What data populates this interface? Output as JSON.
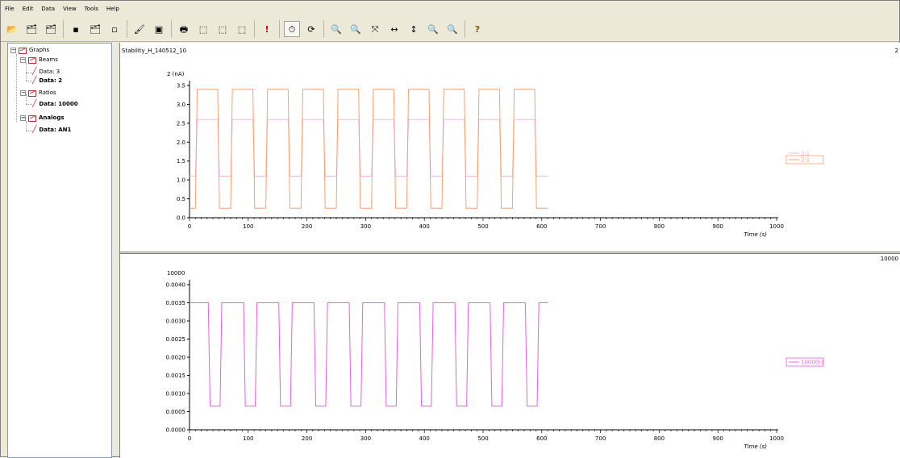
{
  "menu": [
    "File",
    "Edit",
    "Data",
    "View",
    "Tools",
    "Help"
  ],
  "toolbar": {
    "buttons": [
      {
        "name": "open-icon",
        "glyph": "📂"
      },
      {
        "name": "save-graph-icon",
        "glyph": "🗂"
      },
      {
        "name": "save-as-icon",
        "glyph": "🗂"
      },
      {
        "name": "separator"
      },
      {
        "name": "new-doc-icon",
        "glyph": "▪"
      },
      {
        "name": "copy-graph-icon",
        "glyph": "🗂"
      },
      {
        "name": "paste-icon",
        "glyph": "▫"
      },
      {
        "name": "separator"
      },
      {
        "name": "export-icon",
        "glyph": "🖌"
      },
      {
        "name": "image-icon",
        "glyph": "▣"
      },
      {
        "name": "separator"
      },
      {
        "name": "print-icon",
        "glyph": "🖶"
      },
      {
        "name": "add-graph-icon",
        "glyph": "⬚"
      },
      {
        "name": "edit-graph-icon",
        "glyph": "⬚"
      },
      {
        "name": "delete-graph-icon",
        "glyph": "⬚"
      },
      {
        "name": "separator"
      },
      {
        "name": "alert-icon",
        "glyph": "!"
      },
      {
        "name": "separator"
      },
      {
        "name": "timer-icon",
        "glyph": "⏱",
        "active": true
      },
      {
        "name": "refresh-icon",
        "glyph": "⟳"
      },
      {
        "name": "separator"
      },
      {
        "name": "zoom-in-icon",
        "glyph": "🔍"
      },
      {
        "name": "zoom-out-icon",
        "glyph": "🔍"
      },
      {
        "name": "fit-icon",
        "glyph": "⤧"
      },
      {
        "name": "zoom-horizontal-icon",
        "glyph": "↔"
      },
      {
        "name": "zoom-vertical-icon",
        "glyph": "↕"
      },
      {
        "name": "zoom-region-icon",
        "glyph": "🔍"
      },
      {
        "name": "zoom-reset-icon",
        "glyph": "🔍"
      },
      {
        "name": "separator"
      },
      {
        "name": "help-icon",
        "glyph": "?"
      }
    ]
  },
  "tree": {
    "root": "Graphs",
    "beams": "Beams",
    "beams_data_3": "Data: 3",
    "beams_data_2": "Data: 2",
    "ratios": "Ratios",
    "ratios_data": "Data: 10000",
    "analogs": "Analogs",
    "analogs_data": "Data: AN1"
  },
  "graph_title": "Stability_H_140512_10",
  "top_corner": "2",
  "bottom_corner": "10000",
  "colors": {
    "orange": "#f7a070",
    "pink_light": "#f0b8ec",
    "magenta": "#e860e0",
    "legend_orange_border": "#f7a070",
    "legend_pink_border": "#f0b8ec"
  },
  "chart_data": [
    {
      "type": "line",
      "ylabel": "2 (nA)",
      "xlabel": "Time (s)",
      "xlim": [
        0,
        1000
      ],
      "ylim": [
        0,
        3.5
      ],
      "xticks": [
        "0",
        "100",
        "200",
        "300",
        "400",
        "500",
        "600",
        "700",
        "800",
        "900",
        "1000"
      ],
      "yticks": [
        "0.0",
        "0.5",
        "1.0",
        "1.5",
        "2.0",
        "2.5",
        "3.0",
        "3.5"
      ],
      "legend": "right",
      "series": [
        {
          "name": "3:1",
          "color": "#f0b8ec",
          "high": 2.6,
          "low": 1.1,
          "period": 60,
          "duty_high_start": 10,
          "duty_high_end": 48,
          "end": 610
        },
        {
          "name": "2:1",
          "color": "#f7a070",
          "high": 3.4,
          "low": 0.25,
          "period": 60,
          "duty_high_start": 10,
          "duty_high_end": 48,
          "end": 610
        }
      ]
    },
    {
      "type": "line",
      "ylabel": "10000",
      "xlabel": "Time (s)",
      "xlim": [
        0,
        1000
      ],
      "ylim": [
        0,
        0.004
      ],
      "xticks": [
        "0",
        "100",
        "200",
        "300",
        "400",
        "500",
        "600",
        "700",
        "800",
        "900",
        "1000"
      ],
      "yticks": [
        "0.0000",
        "0.0005",
        "0.0010",
        "0.0015",
        "0.0020",
        "0.0025",
        "0.0030",
        "0.0035",
        "0.0040"
      ],
      "legend": "right",
      "series": [
        {
          "name": "10000:1",
          "color": "#e860e0",
          "high": 0.0035,
          "low": 0.00065,
          "period": 60,
          "duty_high_start": 0,
          "duty_high_end": 40,
          "end": 610,
          "phase": -8
        }
      ]
    }
  ]
}
